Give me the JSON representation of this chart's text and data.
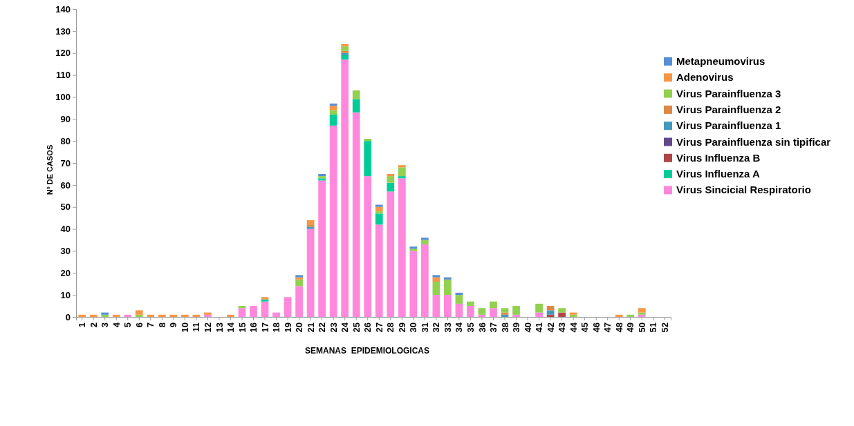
{
  "chart_data": {
    "type": "bar",
    "stacked": true,
    "xlabel": "SEMANAS  EPIDEMIOLOGICAS",
    "ylabel": "Nº DE CASOS",
    "legend": "right",
    "grid": false,
    "categories": [
      "1",
      "2",
      "3",
      "4",
      "5",
      "6",
      "7",
      "8",
      "9",
      "10",
      "11",
      "12",
      "13",
      "14",
      "15",
      "16",
      "17",
      "18",
      "19",
      "20",
      "21",
      "22",
      "23",
      "24",
      "25",
      "26",
      "27",
      "28",
      "29",
      "30",
      "31",
      "32",
      "33",
      "34",
      "35",
      "36",
      "37",
      "38",
      "39",
      "40",
      "41",
      "42",
      "43",
      "44",
      "45",
      "46",
      "47",
      "48",
      "49",
      "50",
      "51",
      "52"
    ],
    "ylim": [
      0,
      140
    ],
    "yticks": [
      0,
      10,
      20,
      30,
      40,
      50,
      60,
      70,
      80,
      90,
      100,
      110,
      120,
      130,
      140
    ],
    "series": [
      {
        "name": "Virus Sincicial Respiratorio",
        "color": "#ff88dd",
        "values": [
          0,
          0,
          0,
          0,
          1,
          0,
          0,
          0,
          0,
          0,
          0,
          1,
          0,
          0,
          4,
          5,
          7,
          2,
          9,
          14,
          40,
          62,
          87,
          117,
          93,
          64,
          42,
          57,
          63,
          30,
          33,
          10,
          10,
          6,
          5,
          1,
          4,
          0,
          1,
          0,
          2,
          0,
          0,
          0,
          0,
          0,
          0,
          0,
          0,
          1,
          0,
          0
        ]
      },
      {
        "name": "Virus Influenza A",
        "color": "#00cc99",
        "values": [
          0,
          0,
          0,
          0,
          0,
          0,
          0,
          0,
          0,
          0,
          0,
          0,
          0,
          0,
          0,
          0,
          1,
          0,
          0,
          0,
          0,
          1,
          5,
          2,
          6,
          16,
          5,
          4,
          1,
          0,
          0,
          0,
          0,
          0,
          0,
          0,
          0,
          0,
          0,
          0,
          0,
          0,
          0,
          0,
          0,
          0,
          0,
          0,
          0,
          0,
          0,
          0
        ]
      },
      {
        "name": "Virus Influenza B",
        "color": "#b04545",
        "values": [
          0,
          0,
          0,
          0,
          0,
          0,
          0,
          0,
          0,
          0,
          0,
          0,
          0,
          0,
          0,
          0,
          0,
          0,
          0,
          0,
          0,
          0,
          0,
          0,
          0,
          0,
          0,
          0,
          0,
          0,
          0,
          0,
          0,
          0,
          0,
          0,
          0,
          0,
          0,
          0,
          0,
          1,
          2,
          0,
          0,
          0,
          0,
          0,
          0,
          0,
          0,
          0
        ]
      },
      {
        "name": "Virus Parainfluenza sin tipificar",
        "color": "#604a8b",
        "values": [
          0,
          0,
          0,
          0,
          0,
          0,
          0,
          0,
          0,
          0,
          0,
          0,
          0,
          0,
          0,
          0,
          0,
          0,
          0,
          0,
          0,
          0,
          0,
          0,
          0,
          0,
          0,
          0,
          0,
          0,
          0,
          0,
          0,
          0,
          0,
          0,
          0,
          0,
          0,
          0,
          0,
          0,
          0,
          0,
          0,
          0,
          0,
          0,
          0,
          0,
          0,
          0
        ]
      },
      {
        "name": "Virus Parainfluenza 1",
        "color": "#4499bb",
        "values": [
          0,
          0,
          0,
          0,
          0,
          0,
          0,
          0,
          0,
          0,
          0,
          0,
          0,
          0,
          0,
          0,
          0,
          0,
          0,
          0,
          1,
          0,
          0,
          1,
          0,
          0,
          0,
          0,
          0,
          0,
          0,
          0,
          0,
          0,
          0,
          0,
          0,
          1,
          0,
          0,
          0,
          2,
          0,
          0,
          0,
          0,
          0,
          0,
          0,
          0,
          0,
          0
        ]
      },
      {
        "name": "Virus Parainfluenza 2",
        "color": "#dd8844",
        "values": [
          0,
          0,
          0,
          0,
          0,
          0,
          0,
          0,
          0,
          0,
          0,
          0,
          0,
          0,
          0,
          0,
          0,
          0,
          0,
          0,
          1,
          0,
          0,
          1,
          0,
          0,
          0,
          0,
          0,
          0,
          0,
          0,
          0,
          0,
          0,
          0,
          0,
          1,
          0,
          0,
          0,
          2,
          0,
          0,
          0,
          0,
          0,
          0,
          0,
          0,
          0,
          0
        ]
      },
      {
        "name": "Virus Parainfluenza 3",
        "color": "#92d050",
        "values": [
          0,
          0,
          1,
          0,
          0,
          1,
          0,
          0,
          0,
          0,
          0,
          0,
          0,
          0,
          1,
          0,
          0,
          0,
          0,
          3,
          0,
          1,
          2,
          2,
          4,
          1,
          1,
          3,
          4,
          1,
          2,
          6,
          7,
          4,
          2,
          3,
          3,
          2,
          4,
          0,
          4,
          0,
          2,
          1,
          0,
          0,
          0,
          0,
          1,
          1,
          0,
          0
        ]
      },
      {
        "name": "Adenovirus",
        "color": "#f79646",
        "values": [
          1,
          1,
          0,
          1,
          0,
          2,
          1,
          1,
          1,
          1,
          1,
          1,
          0,
          1,
          0,
          0,
          1,
          0,
          0,
          1,
          2,
          0,
          2,
          1,
          0,
          0,
          2,
          1,
          1,
          0,
          0,
          2,
          0,
          0,
          0,
          0,
          0,
          0,
          0,
          0,
          0,
          0,
          0,
          1,
          0,
          0,
          0,
          1,
          0,
          2,
          0,
          0
        ]
      },
      {
        "name": "Metapneumovirus",
        "color": "#558ed5",
        "values": [
          0,
          0,
          1,
          0,
          0,
          0,
          0,
          0,
          0,
          0,
          0,
          0,
          0,
          0,
          0,
          0,
          0,
          0,
          0,
          1,
          0,
          1,
          1,
          0,
          0,
          0,
          1,
          0,
          0,
          1,
          1,
          1,
          1,
          1,
          0,
          0,
          0,
          0,
          0,
          0,
          0,
          0,
          0,
          0,
          0,
          0,
          0,
          0,
          0,
          0,
          0,
          0
        ]
      }
    ]
  }
}
